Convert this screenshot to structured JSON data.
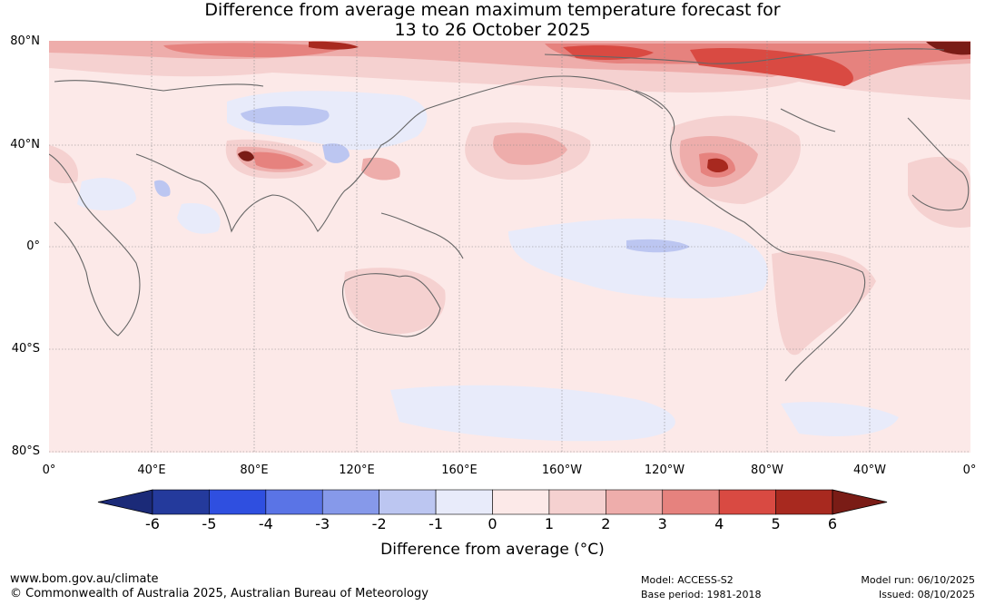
{
  "title": {
    "line1": "Difference from average mean maximum temperature forecast for",
    "line2": "13 to 26 October 2025"
  },
  "map": {
    "lat_labels": [
      "80°N",
      "40°N",
      "0°",
      "40°S",
      "80°S"
    ],
    "lon_labels": [
      "0°",
      "40°E",
      "80°E",
      "120°E",
      "160°E",
      "160°W",
      "120°W",
      "80°W",
      "40°W",
      "0°"
    ]
  },
  "colorbar": {
    "ticks": [
      "-6",
      "-5",
      "-4",
      "-3",
      "-2",
      "-1",
      "0",
      "1",
      "2",
      "3",
      "4",
      "5",
      "6"
    ],
    "colors": [
      "#243a9c",
      "#2f4fe0",
      "#5a74e6",
      "#8699ea",
      "#bcc6f1",
      "#e8ebfa",
      "#fce9e8",
      "#f5d1d0",
      "#eeadab",
      "#e6827e",
      "#d94a42",
      "#a8291f"
    ],
    "under_color": "#1b2a78",
    "over_color": "#7a1c16",
    "label": "Difference from average (°C)"
  },
  "footer": {
    "url": "www.bom.gov.au/climate",
    "copyright": "© Commonwealth of Australia 2025, Australian Bureau of Meteorology",
    "model": "Model: ACCESS-S2",
    "base_period": "Base period: 1981-2018",
    "model_run": "Model run: 06/10/2025",
    "issued": "Issued: 08/10/2025"
  }
}
